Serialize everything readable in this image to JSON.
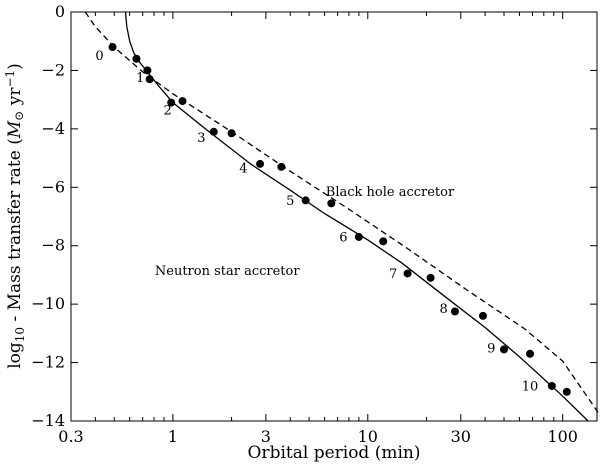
{
  "chart_data": {
    "type": "scatter",
    "xlabel": "Orbital period (min)",
    "ylabel_parts": [
      "log",
      "10",
      " - Mass transfer rate (",
      "M",
      "⊙",
      " yr",
      "−1",
      ")"
    ],
    "x_scale": "log",
    "xlim": [
      0.3,
      150
    ],
    "ylim": [
      -14,
      0
    ],
    "x_ticks": [
      0.3,
      1,
      3,
      10,
      30,
      100
    ],
    "x_tick_labels": [
      "0.3",
      "1",
      "3",
      "10",
      "30",
      "100"
    ],
    "y_ticks": [
      0,
      -2,
      -4,
      -6,
      -8,
      -10,
      -12,
      -14
    ],
    "y_tick_labels": [
      "0",
      "−2",
      "−4",
      "−6",
      "−8",
      "−10",
      "−12",
      "−14"
    ],
    "grid": false,
    "annotations": [
      {
        "text": "Black hole accretor",
        "x": 13,
        "y": -6.3
      },
      {
        "text": "Neutron star accretor",
        "x": 1.9,
        "y": -9.0
      }
    ],
    "series": [
      {
        "style": "solid-line",
        "x": [
          0.571,
          0.58,
          0.6,
          0.63,
          0.68,
          0.75,
          0.85,
          1.0,
          1.5,
          2.5,
          4.0,
          6.0,
          10,
          15,
          25,
          40,
          60,
          100,
          135
        ],
        "y": [
          0.0,
          -0.5,
          -1.0,
          -1.4,
          -1.75,
          -2.1,
          -2.55,
          -3.1,
          -4.05,
          -5.2,
          -6.1,
          -6.9,
          -7.8,
          -8.6,
          -9.75,
          -10.8,
          -11.8,
          -13.15,
          -14.0
        ]
      },
      {
        "style": "dashed-line",
        "x": [
          0.355,
          0.4,
          0.5,
          0.7,
          1.0,
          2.0,
          4.0,
          8.0,
          16,
          32,
          64,
          100,
          163
        ],
        "y": [
          0.0,
          -0.5,
          -1.2,
          -2.05,
          -2.8,
          -4.1,
          -5.45,
          -6.75,
          -8.1,
          -9.5,
          -10.85,
          -11.95,
          -14.0
        ]
      },
      {
        "style": "markers",
        "x": [
          0.49,
          0.65,
          0.74,
          0.76,
          0.98,
          1.12,
          1.62,
          2.0,
          2.8,
          3.6,
          4.8,
          6.5,
          9.0,
          12,
          16,
          21,
          28,
          39,
          50,
          68,
          88,
          105
        ],
        "y": [
          -1.2,
          -1.6,
          -2.0,
          -2.3,
          -3.1,
          -3.05,
          -4.1,
          -4.15,
          -5.2,
          -5.3,
          -6.45,
          -6.55,
          -7.7,
          -7.85,
          -8.95,
          -9.1,
          -10.25,
          -10.4,
          -11.55,
          -11.7,
          -12.8,
          -13.0
        ]
      }
    ],
    "point_labels": [
      {
        "text": "0",
        "x": 0.42,
        "y": -1.65
      },
      {
        "text": "1",
        "x": 0.68,
        "y": -2.4
      },
      {
        "text": "2",
        "x": 0.94,
        "y": -3.5
      },
      {
        "text": "3",
        "x": 1.4,
        "y": -4.45
      },
      {
        "text": "4",
        "x": 2.3,
        "y": -5.5
      },
      {
        "text": "5",
        "x": 4.0,
        "y": -6.6
      },
      {
        "text": "6",
        "x": 7.5,
        "y": -7.85
      },
      {
        "text": "7",
        "x": 13.5,
        "y": -9.1
      },
      {
        "text": "8",
        "x": 24.5,
        "y": -10.3
      },
      {
        "text": "9",
        "x": 43,
        "y": -11.65
      },
      {
        "text": "10",
        "x": 68,
        "y": -12.95
      }
    ]
  }
}
